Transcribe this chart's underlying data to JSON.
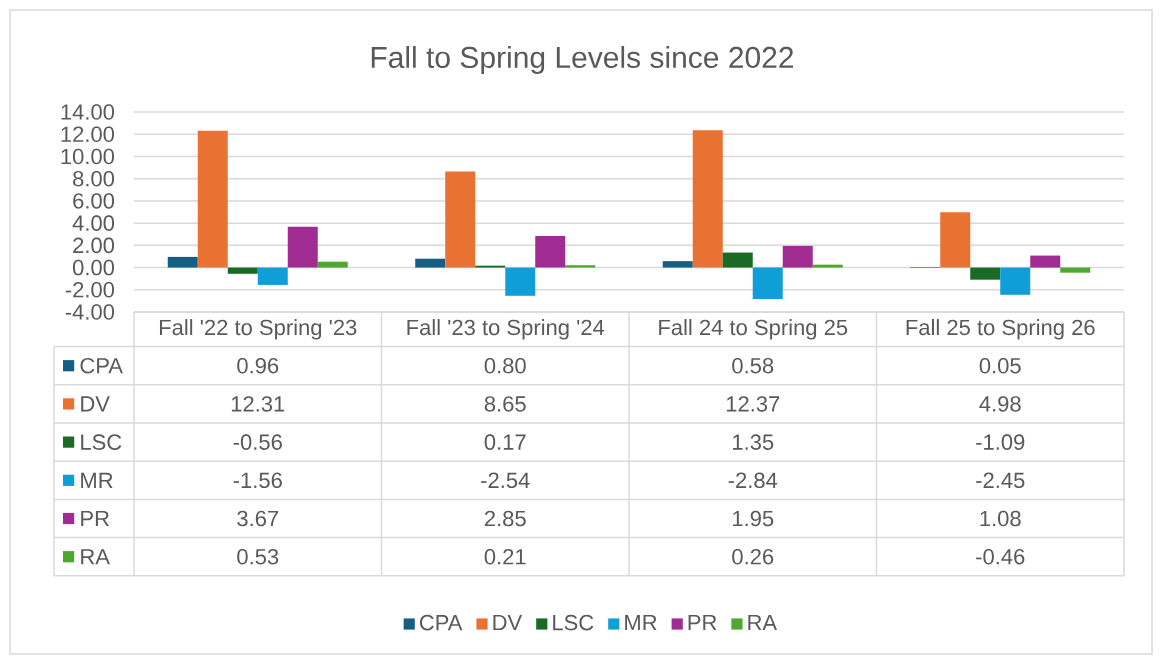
{
  "chart_data": {
    "type": "bar",
    "title": "Fall to Spring Levels since 2022",
    "categories": [
      "Fall '22 to Spring '23",
      "Fall '23 to Spring '24",
      "Fall 24 to Spring 25",
      "Fall 25 to Spring 26"
    ],
    "series": [
      {
        "name": "CPA",
        "color": "#156082",
        "values": [
          0.96,
          0.8,
          0.58,
          0.05
        ],
        "value_labels": [
          "0.96",
          "0.80",
          "0.58",
          "0.05"
        ]
      },
      {
        "name": "DV",
        "color": "#e97132",
        "values": [
          12.31,
          8.65,
          12.37,
          4.98
        ],
        "value_labels": [
          "12.31",
          "8.65",
          "12.37",
          "4.98"
        ]
      },
      {
        "name": "LSC",
        "color": "#196b24",
        "values": [
          -0.56,
          0.17,
          1.35,
          -1.09
        ],
        "value_labels": [
          "-0.56",
          "0.17",
          "1.35",
          "-1.09"
        ]
      },
      {
        "name": "MR",
        "color": "#0f9ed5",
        "values": [
          -1.56,
          -2.54,
          -2.84,
          -2.45
        ],
        "value_labels": [
          "-1.56",
          "-2.54",
          "-2.84",
          "-2.45"
        ]
      },
      {
        "name": "PR",
        "color": "#a02b93",
        "values": [
          3.67,
          2.85,
          1.95,
          1.08
        ],
        "value_labels": [
          "3.67",
          "2.85",
          "1.95",
          "1.08"
        ]
      },
      {
        "name": "RA",
        "color": "#4ea72e",
        "values": [
          0.53,
          0.21,
          0.26,
          -0.46
        ],
        "value_labels": [
          "0.53",
          "0.21",
          "0.26",
          "-0.46"
        ]
      }
    ],
    "ylim": [
      -4,
      14
    ],
    "yticks": [
      {
        "value": -4,
        "label": "-4.00"
      },
      {
        "value": -2,
        "label": "-2.00"
      },
      {
        "value": 0,
        "label": "0.00"
      },
      {
        "value": 2,
        "label": "2.00"
      },
      {
        "value": 4,
        "label": "4.00"
      },
      {
        "value": 6,
        "label": "6.00"
      },
      {
        "value": 8,
        "label": "8.00"
      },
      {
        "value": 10,
        "label": "10.00"
      },
      {
        "value": 12,
        "label": "12.00"
      },
      {
        "value": 14,
        "label": "14.00"
      }
    ],
    "grid": "y",
    "legend": "bottom"
  }
}
